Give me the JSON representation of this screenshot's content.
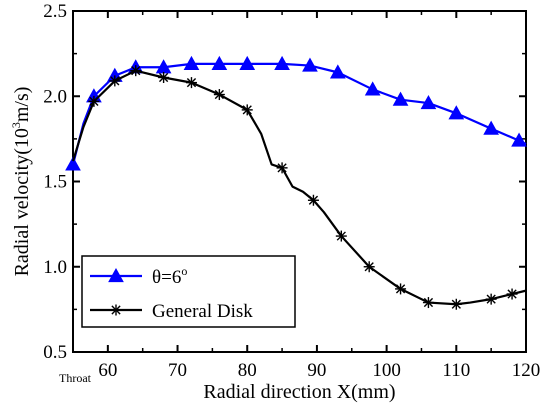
{
  "chart_data": {
    "type": "line",
    "xlabel": "Radial direction X(mm)",
    "ylabel_prefix": "Radial velocity(10",
    "ylabel_sup": "3",
    "ylabel_suffix": "m/s)",
    "xlim": [
      55,
      120
    ],
    "ylim": [
      0.5,
      2.5
    ],
    "x_ticks": [
      60,
      70,
      80,
      90,
      100,
      110,
      120
    ],
    "y_ticks": [
      0.5,
      1.0,
      1.5,
      2.0,
      2.5
    ],
    "y_tick_labels": [
      "0.5",
      "1.0",
      "1.5",
      "2.0",
      "2.5"
    ],
    "x_extra_label": "Throat",
    "legend_position": "bottom-left",
    "series": [
      {
        "name_base": "θ=6",
        "name_sup": "o",
        "color": "#0000ff",
        "marker": "triangle",
        "x": [
          55,
          56.5,
          58,
          61,
          64,
          68,
          72,
          76,
          80,
          85,
          89,
          93,
          98,
          102,
          106,
          110,
          115,
          119,
          120
        ],
        "y": [
          1.6,
          1.84,
          2.0,
          2.12,
          2.17,
          2.17,
          2.19,
          2.19,
          2.19,
          2.19,
          2.18,
          2.14,
          2.04,
          1.98,
          1.96,
          1.9,
          1.81,
          1.74,
          1.72
        ],
        "marker_x": [
          55,
          58,
          61,
          64,
          68,
          72,
          76,
          80,
          85,
          89,
          93,
          98,
          102,
          106,
          110,
          115,
          119
        ],
        "marker_y": [
          1.6,
          2.0,
          2.12,
          2.17,
          2.17,
          2.19,
          2.19,
          2.19,
          2.19,
          2.18,
          2.14,
          2.04,
          1.98,
          1.96,
          1.9,
          1.81,
          1.74
        ]
      },
      {
        "name": "General Disk",
        "color": "#000000",
        "marker": "asterisk",
        "x": [
          55,
          56.5,
          58,
          61,
          64,
          68,
          72,
          76,
          80,
          82,
          83.5,
          85,
          86.5,
          88,
          89.5,
          91,
          93.5,
          97.5,
          102,
          106,
          110,
          112,
          115,
          118,
          120
        ],
        "y": [
          1.62,
          1.82,
          1.97,
          2.09,
          2.15,
          2.11,
          2.08,
          2.01,
          1.92,
          1.78,
          1.6,
          1.58,
          1.47,
          1.44,
          1.39,
          1.32,
          1.18,
          1.0,
          0.87,
          0.79,
          0.78,
          0.79,
          0.81,
          0.84,
          0.86
        ],
        "marker_x": [
          58,
          61,
          64,
          68,
          72,
          76,
          80,
          85,
          89.5,
          93.5,
          97.5,
          102,
          106,
          110,
          115,
          118
        ],
        "marker_y": [
          1.97,
          2.09,
          2.15,
          2.11,
          2.08,
          2.01,
          1.92,
          1.58,
          1.39,
          1.18,
          1.0,
          0.87,
          0.79,
          0.78,
          0.81,
          0.84
        ]
      }
    ]
  }
}
